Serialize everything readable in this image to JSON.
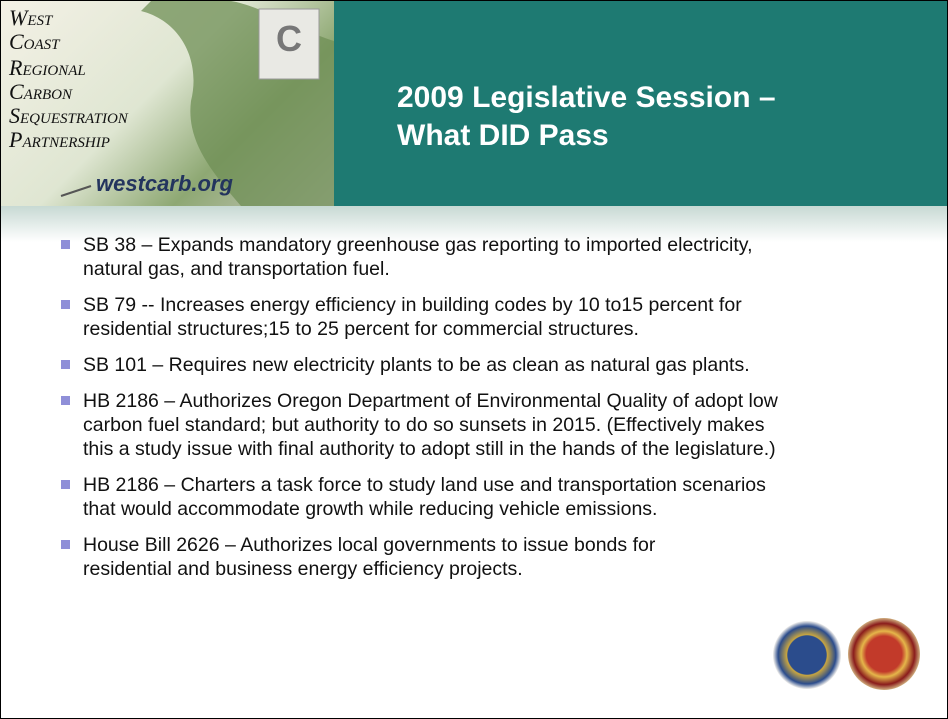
{
  "header": {
    "logo_lines": [
      "West",
      "Coast",
      "Regional",
      "Carbon",
      "Sequestration",
      "Partnership"
    ],
    "logo_url": "westcarb.org",
    "title_lines": [
      "2009 Legislative Session –",
      "What DID Pass"
    ]
  },
  "bullets": [
    {
      "lines": [
        "SB 38 – Expands mandatory greenhouse gas reporting to imported electricity,",
        "natural gas, and transportation fuel."
      ]
    },
    {
      "lines": [
        "SB 79 -- Increases energy efficiency in building codes by 10 to15 percent for",
        "residential structures;15 to 25 percent for commercial structures."
      ]
    },
    {
      "lines": [
        "SB 101 – Requires new electricity plants to be as clean as natural gas plants."
      ]
    },
    {
      "lines": [
        "HB 2186 – Authorizes Oregon Department of Environmental Quality of adopt low",
        "carbon fuel standard; but authority to do so sunsets in 2015.  (Effectively makes",
        "this a study issue with final authority to adopt still in the hands of the legislature.)"
      ]
    },
    {
      "lines": [
        "HB 2186 – Charters a task force to study land use and transportation scenarios",
        "that would accommodate growth while reducing vehicle emissions."
      ]
    },
    {
      "lines": [
        "House Bill 2626 – Authorizes local governments to issue bonds for",
        "residential and business energy efficiency projects."
      ]
    }
  ]
}
